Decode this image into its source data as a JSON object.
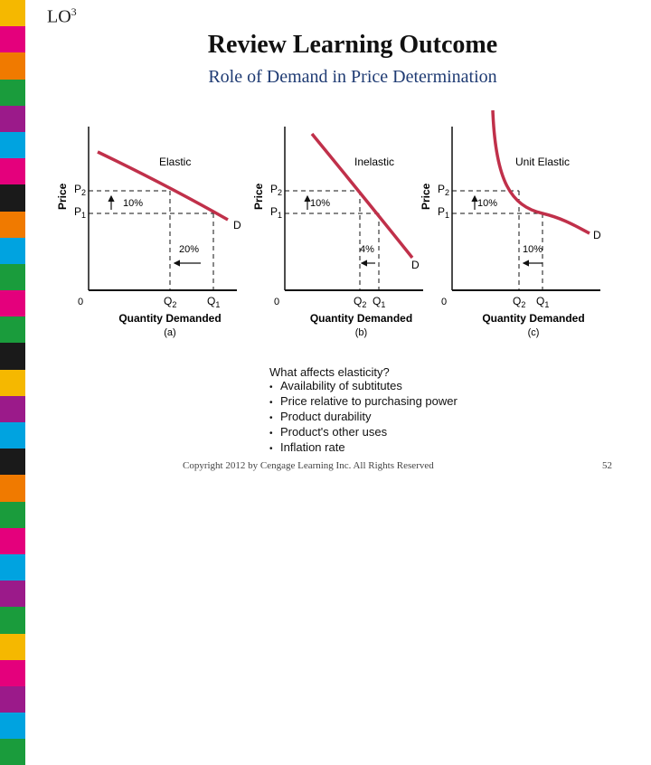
{
  "header": {
    "lo_label": "LO",
    "lo_number": "3",
    "title": "Review Learning Outcome",
    "subtitle": "Role of Demand in Price Determination"
  },
  "colors": {
    "stripe": [
      "#f5b800",
      "#e4007c",
      "#f07a00",
      "#1a9c3c",
      "#9b1a8a",
      "#00a3e0",
      "#e4007c",
      "#1a1a1a",
      "#f07a00",
      "#00a3e0",
      "#1a9c3c",
      "#e4007c",
      "#1a9c3c",
      "#1a1a1a",
      "#f5b800",
      "#9b1a8a",
      "#00a3e0",
      "#1a1a1a",
      "#f07a00",
      "#1a9c3c",
      "#e4007c",
      "#00a3e0",
      "#9b1a8a",
      "#1a9c3c",
      "#f5b800",
      "#e4007c",
      "#9b1a8a",
      "#00a3e0",
      "#1a9c3c"
    ],
    "curve": "#c0304a",
    "axis": "#111111"
  },
  "chart_data": [
    {
      "type": "line",
      "curve_label": "Elastic",
      "ylabel": "Price",
      "xlabel": "Quantity Demanded",
      "panel_label": "(a)",
      "origin_label": "0",
      "p2_label": "P2",
      "p1_label": "P1",
      "q2_label": "Q2",
      "q1_label": "Q1",
      "d_label": "D",
      "price_change": "10%",
      "quantity_change": "20%"
    },
    {
      "type": "line",
      "curve_label": "Inelastic",
      "ylabel": "Price",
      "xlabel": "Quantity Demanded",
      "panel_label": "(b)",
      "origin_label": "0",
      "p2_label": "P2",
      "p1_label": "P1",
      "q2_label": "Q2",
      "q1_label": "Q1",
      "d_label": "D",
      "price_change": "10%",
      "quantity_change": "4%"
    },
    {
      "type": "line",
      "curve_label": "Unit Elastic",
      "ylabel": "Price",
      "xlabel": "Quantity Demanded",
      "panel_label": "(c)",
      "origin_label": "0",
      "p2_label": "P2",
      "p1_label": "P1",
      "q2_label": "Q2",
      "q1_label": "Q1",
      "d_label": "D",
      "price_change": "10%",
      "quantity_change": "10%"
    }
  ],
  "elasticity": {
    "question": "What affects elasticity?",
    "items": [
      "Availability of subtitutes",
      "Price relative to purchasing power",
      "Product durability",
      "Product's other uses",
      "Inflation rate"
    ]
  },
  "footer": {
    "copyright": "Copyright 2012 by Cengage Learning Inc. All Rights Reserved",
    "page": "52"
  }
}
